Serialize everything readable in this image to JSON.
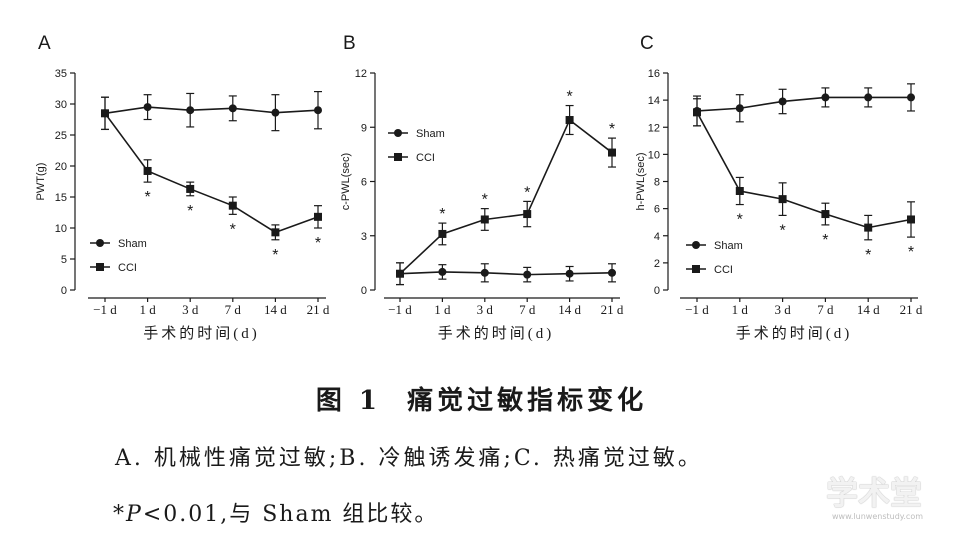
{
  "figure": {
    "caption_title": "图 1  痛觉过敏指标变化",
    "caption_desc": "A. 机械性痛觉过敏;B. 冷触诱发痛;C. 热痛觉过敏。",
    "note_star": "*",
    "note_p": "P",
    "note_rest": "<0.01,与 Sham 组比较。"
  },
  "watermark": {
    "logo_text": "学术堂",
    "url_text": "www.lunwenstudy.com"
  },
  "colors": {
    "ink": "#1a1a1a",
    "background": "#ffffff"
  },
  "chart_data": [
    {
      "panel": "A",
      "type": "line",
      "categories": [
        "−1 d",
        "1 d",
        "3 d",
        "7 d",
        "14 d",
        "21 d"
      ],
      "xlabel": "手术的时间(d)",
      "ylabel": "PWT(g)",
      "ylim": [
        0,
        35
      ],
      "yticks": [
        0,
        5,
        10,
        15,
        20,
        25,
        30,
        35
      ],
      "grid": false,
      "legend": "lower-left",
      "series": [
        {
          "name": "Sham",
          "marker": "circle",
          "values": [
            28.5,
            29.5,
            29.0,
            29.3,
            28.6,
            29.0
          ],
          "errors": [
            2.6,
            2.0,
            2.7,
            2.0,
            2.9,
            3.0
          ]
        },
        {
          "name": "CCI",
          "marker": "square",
          "values": [
            28.5,
            19.2,
            16.3,
            13.6,
            9.3,
            11.8
          ],
          "errors": [
            2.6,
            1.8,
            1.1,
            1.4,
            1.2,
            1.8
          ]
        }
      ],
      "annotations": {
        "text": "*",
        "series": "CCI",
        "categories": [
          "1 d",
          "3 d",
          "7 d",
          "14 d",
          "21 d"
        ],
        "position": "below"
      }
    },
    {
      "panel": "B",
      "type": "line",
      "categories": [
        "−1 d",
        "1 d",
        "3 d",
        "7 d",
        "14 d",
        "21 d"
      ],
      "xlabel": "手术的时间(d)",
      "ylabel": "c-PWL(sec)",
      "ylim": [
        0,
        12
      ],
      "yticks": [
        0,
        3,
        6,
        9,
        12
      ],
      "grid": false,
      "legend": "upper-left",
      "series": [
        {
          "name": "Sham",
          "marker": "circle",
          "values": [
            0.9,
            1.0,
            0.95,
            0.85,
            0.9,
            0.95
          ],
          "errors": [
            0.6,
            0.4,
            0.5,
            0.4,
            0.4,
            0.5
          ]
        },
        {
          "name": "CCI",
          "marker": "square",
          "values": [
            0.9,
            3.1,
            3.9,
            4.2,
            9.4,
            7.6
          ],
          "errors": [
            0.6,
            0.6,
            0.6,
            0.7,
            0.8,
            0.8
          ]
        }
      ],
      "annotations": {
        "text": "*",
        "series": "CCI",
        "categories": [
          "1 d",
          "3 d",
          "7 d",
          "14 d",
          "21 d"
        ],
        "position": "above"
      }
    },
    {
      "panel": "C",
      "type": "line",
      "categories": [
        "−1 d",
        "1 d",
        "3 d",
        "7 d",
        "14 d",
        "21 d"
      ],
      "xlabel": "手术的时间(d)",
      "ylabel": "h-PWL(sec)",
      "ylim": [
        0,
        16
      ],
      "yticks": [
        0,
        2,
        4,
        6,
        8,
        10,
        12,
        14,
        16
      ],
      "grid": false,
      "legend": "lower-left",
      "series": [
        {
          "name": "Sham",
          "marker": "circle",
          "values": [
            13.2,
            13.4,
            13.9,
            14.2,
            14.2,
            14.2
          ],
          "errors": [
            1.1,
            1.0,
            0.9,
            0.7,
            0.7,
            1.0
          ]
        },
        {
          "name": "CCI",
          "marker": "square",
          "values": [
            13.1,
            7.3,
            6.7,
            5.6,
            4.6,
            5.2
          ],
          "errors": [
            1.0,
            1.0,
            1.2,
            0.8,
            0.9,
            1.3
          ]
        }
      ],
      "annotations": {
        "text": "*",
        "series": "CCI",
        "categories": [
          "1 d",
          "3 d",
          "7 d",
          "14 d",
          "21 d"
        ],
        "position": "below"
      }
    }
  ]
}
